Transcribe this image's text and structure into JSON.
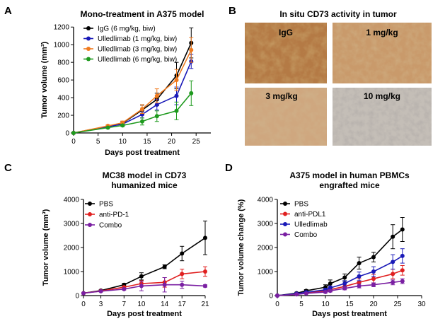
{
  "panels": {
    "A": {
      "label": "A"
    },
    "B": {
      "label": "B",
      "title": "In situ CD73 activity in tumor",
      "images": [
        {
          "label": "IgG",
          "shade": "#b47a45"
        },
        {
          "label": "1 mg/kg",
          "shade": "#c99a6b"
        },
        {
          "label": "3 mg/kg",
          "shade": "#cfa77f"
        },
        {
          "label": "10 mg/kg",
          "shade": "#c4beb7"
        }
      ]
    },
    "C": {
      "label": "C"
    },
    "D": {
      "label": "D"
    }
  },
  "chart_data": [
    {
      "id": "A",
      "type": "line",
      "title": "Mono-treatment in A375 model",
      "xlabel": "Days post treatment",
      "ylabel": "Tumor volume (mm³)",
      "xlim": [
        0,
        28
      ],
      "ylim": [
        0,
        1250
      ],
      "xticks": [
        0,
        5,
        10,
        15,
        20,
        25
      ],
      "yticks": [
        0,
        200,
        400,
        600,
        800,
        1000,
        1200
      ],
      "grid": false,
      "legend": "top-left",
      "x": [
        0,
        7,
        10,
        14,
        17,
        21,
        24
      ],
      "series": [
        {
          "name": "IgG (6 mg/kg, biw)",
          "color": "#000000",
          "values": [
            0,
            75,
            110,
            260,
            380,
            650,
            1020
          ],
          "err": [
            0,
            12,
            18,
            55,
            70,
            150,
            170
          ]
        },
        {
          "name": "Ulledlimab (1 mg/kg, biw)",
          "color": "#1a1ab8",
          "values": [
            0,
            70,
            100,
            210,
            320,
            420,
            810
          ],
          "err": [
            0,
            10,
            15,
            40,
            60,
            100,
            80
          ]
        },
        {
          "name": "Ulledlimab (3 mg/kg, biw)",
          "color": "#f07a1e",
          "values": [
            0,
            80,
            115,
            270,
            420,
            600,
            940
          ],
          "err": [
            0,
            12,
            20,
            50,
            80,
            120,
            140
          ]
        },
        {
          "name": "Ulledlimab (6 mg/kg, biw)",
          "color": "#1e9a1e",
          "values": [
            0,
            60,
            85,
            130,
            190,
            250,
            450
          ],
          "err": [
            0,
            10,
            12,
            40,
            60,
            100,
            140
          ]
        }
      ]
    },
    {
      "id": "C",
      "type": "line",
      "title": "MC38 model in CD73",
      "subtitle": "humanized mice",
      "xlabel": "Days post treatment",
      "ylabel": "Tumor volume  (mm³)",
      "xlim": [
        0,
        21
      ],
      "ylim": [
        0,
        4000
      ],
      "xticks": [
        0,
        3,
        7,
        10,
        14,
        17,
        21
      ],
      "yticks": [
        0,
        1000,
        2000,
        3000,
        4000
      ],
      "grid": false,
      "legend": "top-left",
      "x": [
        0,
        3,
        7,
        10,
        14,
        17,
        21
      ],
      "series": [
        {
          "name": "PBS",
          "color": "#000000",
          "values": [
            100,
            210,
            450,
            800,
            1200,
            1750,
            2400
          ],
          "err": [
            20,
            30,
            60,
            150,
            80,
            300,
            700
          ]
        },
        {
          "name": "anti-PD-1",
          "color": "#e02020",
          "values": [
            100,
            190,
            350,
            500,
            550,
            900,
            1000
          ],
          "err": [
            20,
            30,
            50,
            120,
            200,
            200,
            200
          ]
        },
        {
          "name": "Combo",
          "color": "#7a1fa2",
          "values": [
            100,
            180,
            270,
            400,
            450,
            450,
            400
          ],
          "err": [
            20,
            30,
            40,
            200,
            300,
            150,
            50
          ]
        }
      ]
    },
    {
      "id": "D",
      "type": "line",
      "title": "A375 model in human PBMCs",
      "subtitle": "engrafted mice",
      "xlabel": "Days post treatment",
      "ylabel": "Tumor volume change (%)",
      "xlim": [
        0,
        30
      ],
      "ylim": [
        0,
        4000
      ],
      "xticks": [
        0,
        5,
        10,
        15,
        20,
        25,
        30
      ],
      "yticks": [
        0,
        1000,
        2000,
        3000,
        4000
      ],
      "grid": false,
      "legend": "top-left",
      "x": [
        0,
        4,
        6,
        10,
        11,
        14,
        17,
        20,
        24,
        26
      ],
      "series": [
        {
          "name": "PBS",
          "color": "#000000",
          "values": [
            0,
            100,
            200,
            350,
            500,
            750,
            1350,
            1600,
            2450,
            2750
          ],
          "err": [
            0,
            40,
            50,
            100,
            150,
            150,
            250,
            200,
            500,
            500
          ]
        },
        {
          "name": "anti-PDL1",
          "color": "#e02020",
          "values": [
            0,
            60,
            110,
            200,
            250,
            380,
            550,
            700,
            900,
            1050
          ],
          "err": [
            0,
            30,
            40,
            60,
            80,
            100,
            150,
            180,
            200,
            200
          ]
        },
        {
          "name": "Ulledlimab",
          "color": "#1a1ab8",
          "values": [
            0,
            80,
            140,
            240,
            320,
            500,
            800,
            1000,
            1400,
            1650
          ],
          "err": [
            0,
            30,
            40,
            60,
            80,
            120,
            180,
            200,
            300,
            300
          ]
        },
        {
          "name": "Combo",
          "color": "#7a1fa2",
          "values": [
            0,
            50,
            90,
            150,
            200,
            300,
            400,
            450,
            550,
            600
          ],
          "err": [
            0,
            20,
            30,
            40,
            50,
            60,
            80,
            80,
            100,
            100
          ]
        }
      ]
    }
  ]
}
